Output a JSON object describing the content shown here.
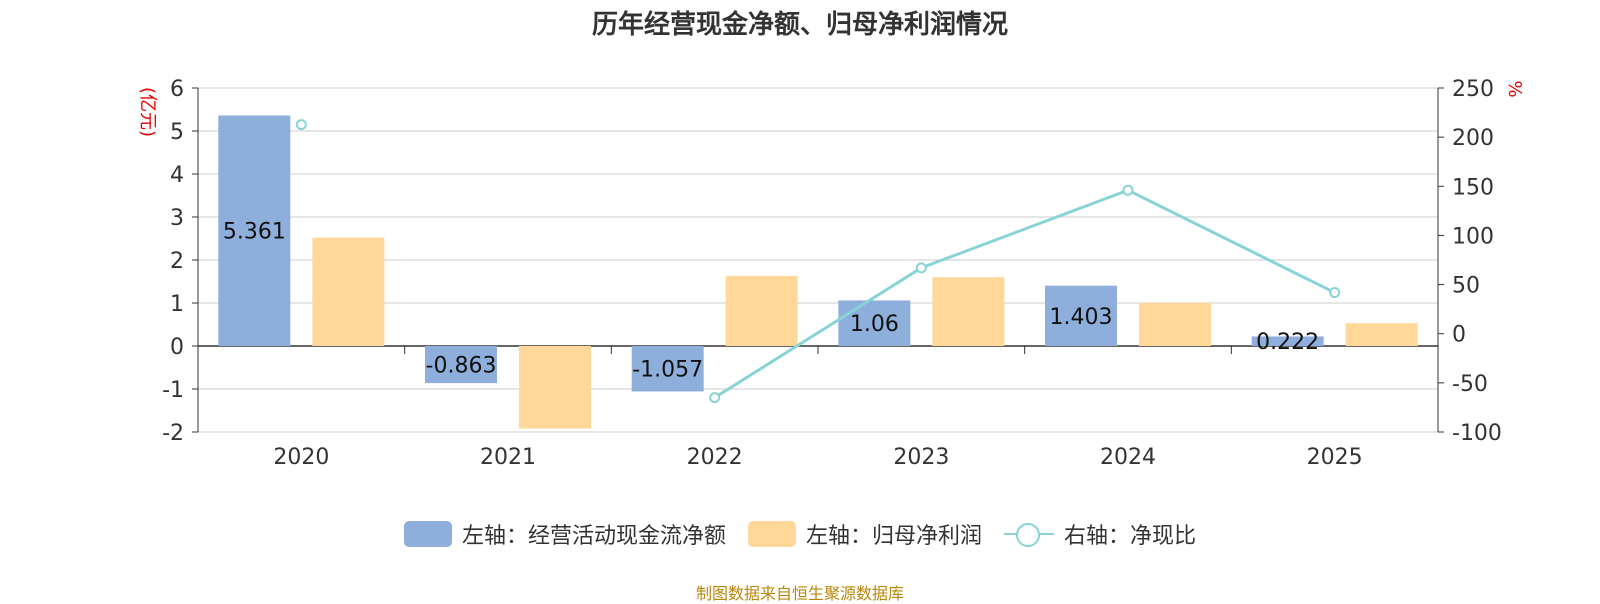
{
  "title": "历年经营现金净额、归母净利润情况",
  "source": "制图数据来自恒生聚源数据库",
  "colors": {
    "series1": "#8eaedc",
    "series2": "#ffd899",
    "line": "#88d3d6",
    "unit": "#e60000"
  },
  "legend": [
    {
      "label": "左轴：经营活动现金流净额"
    },
    {
      "label": "左轴：归母净利润"
    },
    {
      "label": "右轴：净现比"
    }
  ],
  "chart_data": {
    "type": "bar",
    "categories": [
      "2020",
      "2021",
      "2022",
      "2023",
      "2024",
      "2025"
    ],
    "y_left": {
      "label": "(亿元)",
      "min": -2,
      "max": 6,
      "ticks": [
        "6",
        "5",
        "4",
        "3",
        "2",
        "1",
        "0",
        "-1",
        "-2"
      ]
    },
    "y_right": {
      "label": "%",
      "min": -100,
      "max": 250,
      "ticks": [
        "250",
        "200",
        "150",
        "100",
        "50",
        "0",
        "-50",
        "-100"
      ]
    },
    "series": [
      {
        "name": "左轴：经营活动现金流净额",
        "axis": "left",
        "type": "bar",
        "values": [
          5.361,
          -0.863,
          -1.057,
          1.06,
          1.403,
          0.222
        ],
        "labels": [
          "5.361",
          "-0.863",
          "-1.057",
          "1.06",
          "1.403",
          "0.222"
        ]
      },
      {
        "name": "左轴：归母净利润",
        "axis": "left",
        "type": "bar",
        "values": [
          2.52,
          -1.92,
          1.63,
          1.6,
          1.0,
          0.53
        ]
      },
      {
        "name": "右轴：净现比",
        "axis": "right",
        "type": "line",
        "values": [
          212.7,
          null,
          -65,
          67,
          146,
          41.9
        ]
      }
    ],
    "grid": true
  }
}
